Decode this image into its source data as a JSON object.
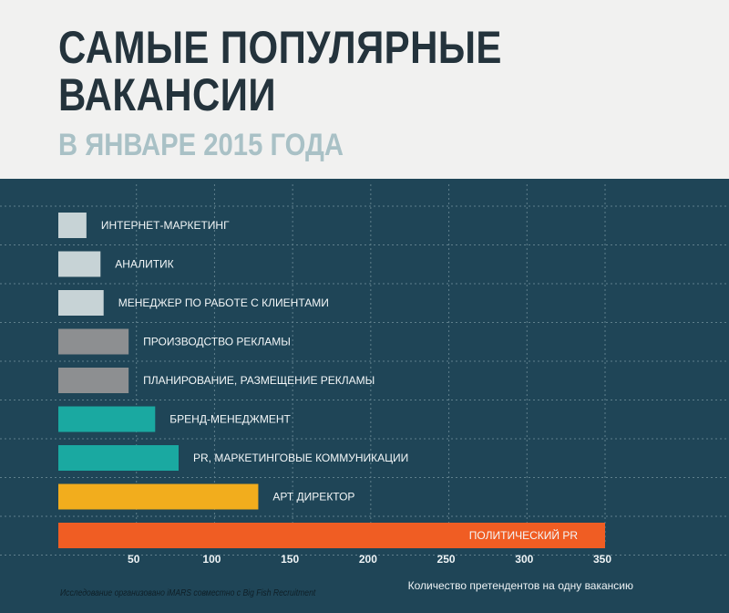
{
  "header": {
    "title_line1": "САМЫЕ ПОПУЛЯРНЫЕ",
    "title_line2": "ВАКАНСИИ",
    "subtitle": "В ЯНВАРЕ 2015 ГОДА"
  },
  "footer": {
    "credit": "Исследование организовано iMARS совместно с Big Fish Recruitment"
  },
  "colors": {
    "background": "#1f4557",
    "grid": "#5f7f8c",
    "light_gray": "#c7d3d6",
    "gray": "#8d8f91",
    "teal": "#1aa9a1",
    "yellow": "#f2ad1d",
    "orange": "#f05d23"
  },
  "chart_data": {
    "type": "bar",
    "orientation": "horizontal",
    "title": "САМЫЕ ПОПУЛЯРНЫЕ ВАКАНСИИ",
    "subtitle": "В ЯНВАРЕ 2015 ГОДА",
    "xlabel": "Количество претендентов на одну вакансию",
    "ylabel": "",
    "xlim": [
      0,
      350
    ],
    "x_ticks": [
      50,
      100,
      150,
      200,
      250,
      300,
      350
    ],
    "grid": true,
    "categories": [
      "ИНТЕРНЕТ-МАРКЕТИНГ",
      "АНАЛИТИК",
      "МЕНЕДЖЕР ПО РАБОТЕ С КЛИЕНТАМИ",
      "ПРОИЗВОДСТВО РЕКЛАМЫ",
      "ПЛАНИРОВАНИЕ, РАЗМЕЩЕНИЕ РЕКЛАМЫ",
      "БРЕНД-МЕНЕДЖМЕНТ",
      "PR, МАРКЕТИНГОВЫЕ КОММУНИКАЦИИ",
      "АРТ ДИРЕКТОР",
      "ПОЛИТИЧЕСКИЙ PR"
    ],
    "values": [
      18,
      27,
      29,
      45,
      45,
      62,
      77,
      128,
      350
    ],
    "bar_colors": [
      "#c7d3d6",
      "#c7d3d6",
      "#c7d3d6",
      "#8d8f91",
      "#8d8f91",
      "#1aa9a1",
      "#1aa9a1",
      "#f2ad1d",
      "#f05d23"
    ]
  }
}
